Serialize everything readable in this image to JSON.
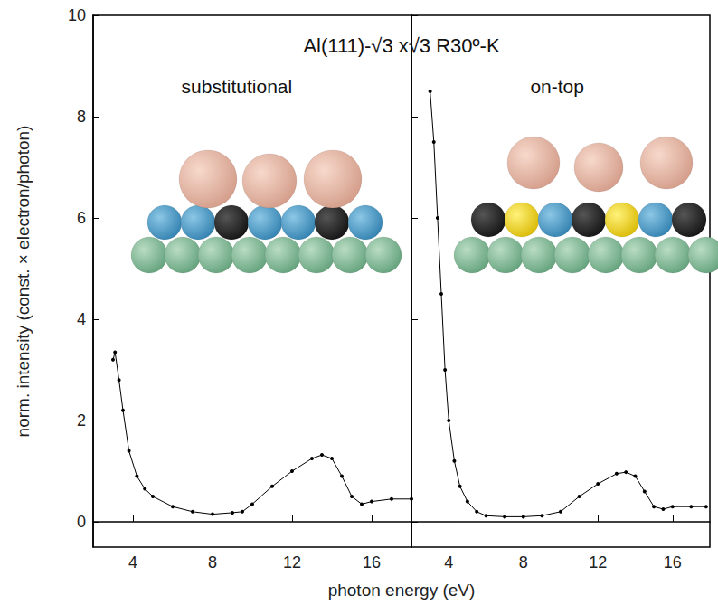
{
  "chart_data": {
    "type": "line",
    "title": "Al(111)-√3 x√3 R30º-K",
    "x_label": "photon energy (eV)",
    "y_label": "norm. intensity (const. × electron/photon)",
    "xlim": [
      2,
      18
    ],
    "xticks": [
      4,
      8,
      12,
      16
    ],
    "ylim": [
      -0.5,
      10
    ],
    "yticks": [
      0,
      2,
      4,
      6,
      8,
      10
    ],
    "grid": false,
    "marker": "circle",
    "line_style": "solid",
    "series": [
      {
        "name": "substitutional",
        "color": "#000000",
        "x": [
          3.0,
          3.1,
          3.3,
          3.5,
          3.8,
          4.2,
          4.6,
          5.0,
          6.0,
          7.0,
          8.0,
          9.0,
          9.5,
          10.0,
          11.0,
          12.0,
          13.0,
          13.5,
          14.0,
          14.5,
          15.0,
          15.5,
          16.0,
          17.0,
          18.0
        ],
        "values": [
          3.2,
          3.35,
          2.8,
          2.2,
          1.4,
          0.9,
          0.65,
          0.5,
          0.3,
          0.2,
          0.15,
          0.18,
          0.2,
          0.35,
          0.7,
          1.0,
          1.25,
          1.32,
          1.25,
          0.9,
          0.5,
          0.35,
          0.4,
          0.45,
          0.45
        ]
      },
      {
        "name": "on-top",
        "color": "#000000",
        "x": [
          3.0,
          3.2,
          3.4,
          3.6,
          3.8,
          4.0,
          4.3,
          4.6,
          5.0,
          5.5,
          6.0,
          7.0,
          8.0,
          9.0,
          10.0,
          11.0,
          12.0,
          13.0,
          13.5,
          14.0,
          14.5,
          15.0,
          15.5,
          16.0,
          17.0,
          17.8
        ],
        "values": [
          8.5,
          7.5,
          6.0,
          4.5,
          3.0,
          2.0,
          1.2,
          0.7,
          0.4,
          0.2,
          0.12,
          0.1,
          0.1,
          0.12,
          0.2,
          0.5,
          0.75,
          0.95,
          0.98,
          0.9,
          0.6,
          0.3,
          0.25,
          0.3,
          0.3,
          0.3
        ]
      }
    ]
  }
}
